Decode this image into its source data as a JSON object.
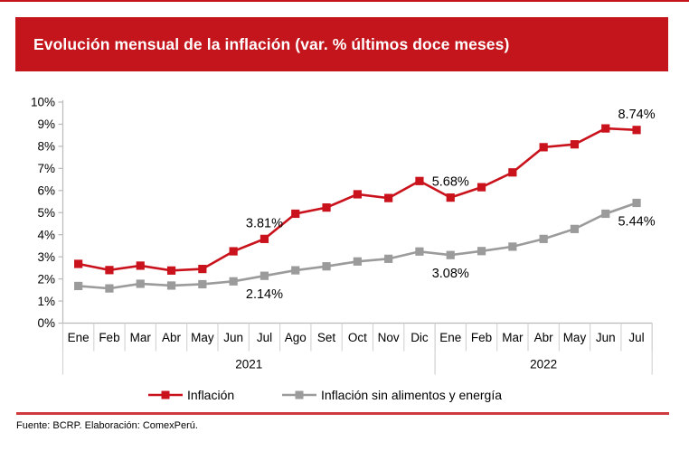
{
  "header": {
    "title": "Evolución mensual de la inflación (var. % últimos doce meses)"
  },
  "legend": {
    "items": [
      {
        "label": "Inflación",
        "color": "#C9121B"
      },
      {
        "label": "Inflación sin alimentos y energía",
        "color": "#9B9B9B"
      }
    ]
  },
  "footer": {
    "source_note": "Fuente: BCRP. Elaboración: ComexPerú."
  },
  "colors": {
    "accent_red": "#C3151B",
    "series_red": "#C9121B",
    "series_gray": "#9B9B9B",
    "divider_red": "#CE3A3E",
    "axis_gray": "#B9B9B9",
    "cell_gray": "#D2D2D2",
    "text": "#000000"
  },
  "chart_data": {
    "type": "line",
    "title": "Evolución mensual de la inflación (var. % últimos doce meses)",
    "x_months": [
      "Ene",
      "Feb",
      "Mar",
      "Abr",
      "May",
      "Jun",
      "Jul",
      "Ago",
      "Set",
      "Oct",
      "Nov",
      "Dic",
      "Ene",
      "Feb",
      "Mar",
      "Abr",
      "May",
      "Jun",
      "Jul"
    ],
    "x_years": [
      {
        "label": "2021",
        "start": 0,
        "count": 12
      },
      {
        "label": "2022",
        "start": 12,
        "count": 7
      }
    ],
    "y_ticks": [
      "0%",
      "1%",
      "2%",
      "3%",
      "4%",
      "5%",
      "6%",
      "7%",
      "8%",
      "9%",
      "10%"
    ],
    "ylim": [
      0,
      10
    ],
    "grid": false,
    "legend_position": "bottom",
    "series": [
      {
        "name": "Inflación",
        "color": "#C9121B",
        "values": [
          2.68,
          2.4,
          2.6,
          2.38,
          2.45,
          3.25,
          3.81,
          4.95,
          5.23,
          5.83,
          5.66,
          6.43,
          5.68,
          6.15,
          6.82,
          7.96,
          8.09,
          8.81,
          8.74
        ]
      },
      {
        "name": "Inflación sin alimentos y energía",
        "color": "#9B9B9B",
        "values": [
          1.68,
          1.57,
          1.78,
          1.7,
          1.76,
          1.89,
          2.14,
          2.39,
          2.57,
          2.79,
          2.91,
          3.24,
          3.08,
          3.26,
          3.46,
          3.81,
          4.26,
          4.95,
          5.44
        ]
      }
    ],
    "annotations": [
      {
        "series": 0,
        "index": 6,
        "text": "3.81%",
        "placement": "above"
      },
      {
        "series": 1,
        "index": 6,
        "text": "2.14%",
        "placement": "below"
      },
      {
        "series": 0,
        "index": 12,
        "text": "5.68%",
        "placement": "above"
      },
      {
        "series": 1,
        "index": 12,
        "text": "3.08%",
        "placement": "below"
      },
      {
        "series": 0,
        "index": 18,
        "text": "8.74%",
        "placement": "above"
      },
      {
        "series": 1,
        "index": 18,
        "text": "5.44%",
        "placement": "below"
      }
    ]
  }
}
